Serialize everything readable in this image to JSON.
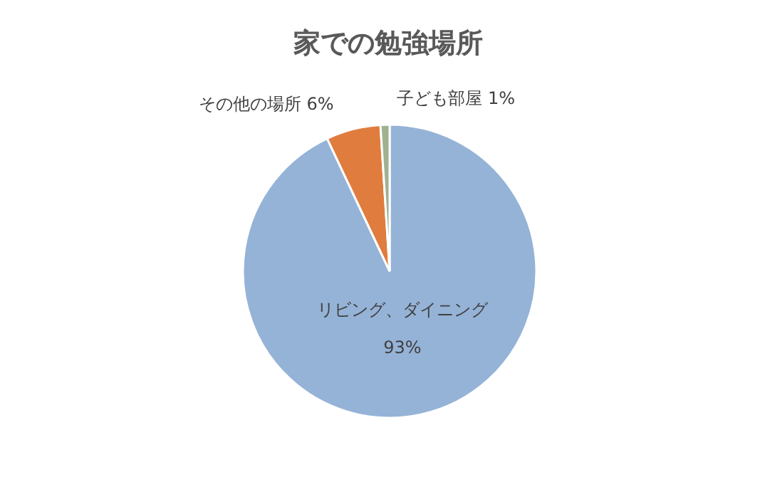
{
  "chart_data": {
    "type": "pie",
    "title": "家での勉強場所",
    "categories": [
      "リビング、ダイニング",
      "その他の場所",
      "子ども部屋"
    ],
    "values": [
      93,
      6,
      1
    ],
    "colors": [
      "#95b3d7",
      "#e07c3e",
      "#9fb191"
    ],
    "value_labels": [
      "93%",
      "6%",
      "1%"
    ]
  }
}
